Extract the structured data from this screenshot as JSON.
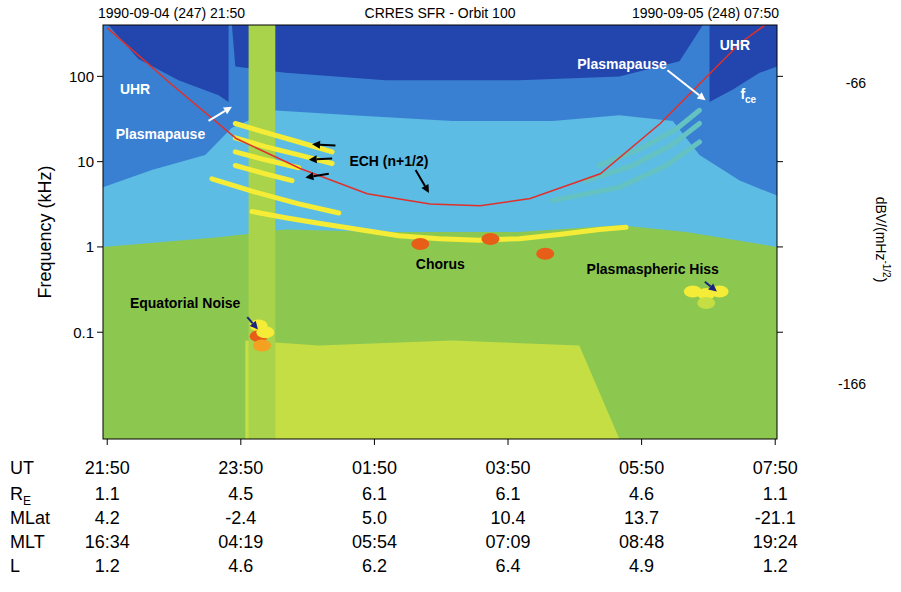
{
  "chart_data": {
    "type": "spectrogram",
    "title": "CRRES SFR - Orbit 100",
    "start_label": "1990-09-04 (247) 21:50",
    "end_label": "1990-09-05 (248) 07:50",
    "ylabel": "Frequency (kHz)",
    "xlabel": "UT",
    "log": "y",
    "grid": false,
    "xlim": [
      21.77,
      31.86
    ],
    "ylim": [
      0.0056,
      400
    ],
    "xticks": [
      {
        "value": 21.8333,
        "label": "21:50"
      },
      {
        "value": 23.8333,
        "label": "23:50"
      },
      {
        "value": 25.8333,
        "label": "01:50"
      },
      {
        "value": 27.8333,
        "label": "03:50"
      },
      {
        "value": 29.8333,
        "label": "05:50"
      },
      {
        "value": 31.8333,
        "label": "07:50"
      }
    ],
    "yticks": [
      0.1,
      1,
      10,
      100
    ],
    "colorbar": {
      "label": "dBV/(mHz",
      "label_superscript": "-1/2",
      "label_suffix": ")",
      "range": [
        -166,
        -66
      ],
      "ticks": [
        -166,
        -66
      ],
      "stops": [
        [
          -166,
          "#1a2a80"
        ],
        [
          -151,
          "#2246ae"
        ],
        [
          -136,
          "#3a80d2"
        ],
        [
          -121,
          "#5cbce4"
        ],
        [
          -111,
          "#6cc8a0"
        ],
        [
          -106,
          "#8cc850"
        ],
        [
          -96,
          "#c4de44"
        ],
        [
          -86,
          "#f4ec36"
        ],
        [
          -76,
          "#f4a020"
        ],
        [
          -66,
          "#d81c10"
        ]
      ]
    },
    "regions": [
      {
        "level": -106,
        "x": [
          21.77,
          31.86,
          31.86,
          21.77
        ],
        "y": [
          0.0056,
          0.0056,
          400,
          400
        ]
      },
      {
        "level": -121,
        "x": [
          21.77,
          21.77,
          23.5,
          24.5,
          26,
          28,
          29.5,
          30.5,
          31.86,
          31.86
        ],
        "y": [
          400,
          1.0,
          1.3,
          1.6,
          1.5,
          1.5,
          1.8,
          1.5,
          1.0,
          400
        ]
      },
      {
        "level": -136,
        "x": [
          21.77,
          21.77,
          22.5,
          23.3,
          23.7,
          24.3,
          25.5,
          27,
          28.5,
          29.5,
          30.3,
          30.7,
          31.3,
          31.86,
          31.86
        ],
        "y": [
          400,
          5,
          8,
          12,
          25,
          40,
          35,
          30,
          30,
          35,
          30,
          12,
          6,
          4,
          400
        ]
      },
      {
        "level": -151,
        "x": [
          21.85,
          22.3,
          22.9,
          23.5,
          23.65,
          23.65
        ],
        "y": [
          400,
          160,
          90,
          60,
          50,
          400
        ]
      },
      {
        "level": -151,
        "x": [
          23.7,
          23.75,
          24.5,
          26,
          28,
          29.5,
          30.4,
          30.75
        ],
        "y": [
          400,
          130,
          110,
          90,
          90,
          100,
          150,
          400
        ]
      },
      {
        "level": -151,
        "x": [
          30.85,
          30.85,
          31.2,
          31.6,
          31.86,
          31.86
        ],
        "y": [
          400,
          50,
          70,
          110,
          130,
          400
        ]
      },
      {
        "level": -96,
        "x": [
          23.9,
          23.9,
          25,
          27,
          28.9,
          29.5
        ],
        "y": [
          0.0056,
          0.08,
          0.07,
          0.08,
          0.07,
          0.0056
        ]
      },
      {
        "level": -101,
        "x": [
          23.95,
          23.95,
          24.35,
          24.35
        ],
        "y": [
          0.0056,
          400,
          400,
          0.0056
        ]
      }
    ],
    "bands": [
      {
        "level": -86,
        "x": [
          23.75,
          24.2,
          24.7,
          25.2
        ],
        "y": [
          28,
          22,
          17,
          13
        ]
      },
      {
        "level": -86,
        "x": [
          23.75,
          24.2,
          24.7,
          25.2
        ],
        "y": [
          19,
          15,
          12,
          9.5
        ]
      },
      {
        "level": -86,
        "x": [
          23.75,
          24.2,
          24.7
        ],
        "y": [
          13,
          10.5,
          8.5
        ]
      },
      {
        "level": -86,
        "x": [
          23.75,
          24.2,
          24.6
        ],
        "y": [
          9,
          7.2,
          6
        ]
      },
      {
        "level": -86,
        "x": [
          23.4,
          24,
          24.7,
          25.3
        ],
        "y": [
          6.3,
          4.5,
          3.2,
          2.5
        ]
      },
      {
        "level": -86,
        "x": [
          24.0,
          24.5,
          25.0,
          25.6,
          26.2,
          26.8,
          27.4,
          28.0,
          28.6,
          29.2,
          29.6
        ],
        "y": [
          2.6,
          2.2,
          1.9,
          1.6,
          1.35,
          1.25,
          1.2,
          1.25,
          1.4,
          1.6,
          1.7
        ]
      },
      {
        "level": -116,
        "x": [
          28.5,
          29.5,
          30.2,
          30.7
        ],
        "y": [
          3.5,
          5,
          9,
          17
        ]
      },
      {
        "level": -116,
        "x": [
          29.0,
          29.7,
          30.3,
          30.7
        ],
        "y": [
          6,
          9,
          16,
          28
        ]
      },
      {
        "level": -116,
        "x": [
          29.2,
          29.8,
          30.35,
          30.7
        ],
        "y": [
          9,
          14,
          24,
          40
        ]
      }
    ],
    "spots": {
      "x": [
        26.52,
        27.57,
        28.39,
        24.1,
        24.1,
        24.15,
        24.2,
        30.6,
        30.8,
        31.0,
        30.8
      ],
      "y": [
        1.08,
        1.24,
        0.83,
        0.12,
        0.09,
        0.07,
        0.1,
        0.3,
        0.28,
        0.3,
        0.22
      ],
      "levels": [
        -71,
        -71,
        -71,
        -86,
        -71,
        -76,
        -86,
        -86,
        -86,
        -86,
        -96
      ]
    },
    "series": [
      {
        "color": "#e0302a",
        "x": [
          21.833,
          22.776,
          23.764,
          24.722,
          25.725,
          26.669,
          27.417,
          28.166,
          29.214,
          30.112,
          30.71,
          31.31,
          31.68
        ],
        "values": [
          370,
          83,
          18.7,
          8.3,
          4.2,
          3.2,
          3.04,
          3.7,
          7.2,
          28,
          83,
          246,
          400
        ]
      }
    ],
    "annotations": [
      {
        "text": "UHR",
        "x": 22.25,
        "y": 72,
        "color": "#ffffff"
      },
      {
        "text": "UHR",
        "x": 31.23,
        "y": 233,
        "color": "#ffffff"
      },
      {
        "text": "Plasmapause",
        "x": 22.63,
        "y": 21,
        "color": "#ffffff"
      },
      {
        "text": "Plasmapause",
        "x": 29.54,
        "y": 138,
        "color": "#ffffff"
      },
      {
        "text": "ECH (n+1/2)",
        "x": 26.05,
        "y": 10.3,
        "color": "#000000"
      },
      {
        "text": "Chorus",
        "x": 26.82,
        "y": 0.63,
        "color": "#000000"
      },
      {
        "text": "Equatorial Noise",
        "x": 23.0,
        "y": 0.22,
        "color": "#000000"
      },
      {
        "text": "Plasmaspheric Hiss",
        "x": 30.0,
        "y": 0.55,
        "color": "#000000"
      },
      {
        "text": "f",
        "subscript": "ce",
        "x": 31.43,
        "y": 62,
        "color": "#ffffff"
      }
    ],
    "arrows": [
      {
        "x": [
          23.35,
          23.7
        ],
        "y": [
          30,
          44
        ],
        "color": "#ffffff"
      },
      {
        "x": [
          30.22,
          30.79
        ],
        "y": [
          118,
          52.5
        ],
        "color": "#ffffff"
      },
      {
        "x": [
          25.25,
          24.9
        ],
        "y": [
          15.5,
          16
        ],
        "color": "#000000"
      },
      {
        "x": [
          25.2,
          24.85
        ],
        "y": [
          10.9,
          10.5
        ],
        "color": "#000000"
      },
      {
        "x": [
          25.15,
          24.8
        ],
        "y": [
          7.2,
          6.5
        ],
        "color": "#000000"
      },
      {
        "x": [
          26.45,
          26.65
        ],
        "y": [
          8.0,
          4.3
        ],
        "color": "#000000"
      },
      {
        "x": [
          23.93,
          24.09
        ],
        "y": [
          0.15,
          0.108
        ],
        "color": "#1a237e"
      },
      {
        "x": [
          30.78,
          30.96
        ],
        "y": [
          0.39,
          0.3
        ],
        "color": "#1a237e"
      }
    ],
    "table": {
      "rows": [
        {
          "label": "R",
          "subscript": "E",
          "values": [
            "1.1",
            "4.5",
            "6.1",
            "6.1",
            "4.6",
            "1.1"
          ]
        },
        {
          "label": "MLat",
          "values": [
            "4.2",
            "-2.4",
            "5.0",
            "10.4",
            "13.7",
            "-21.1"
          ]
        },
        {
          "label": "MLT",
          "values": [
            "16:34",
            "04:19",
            "05:54",
            "07:09",
            "08:48",
            "19:24"
          ]
        },
        {
          "label": "L",
          "values": [
            "1.2",
            "4.6",
            "6.2",
            "6.4",
            "4.9",
            "1.2"
          ]
        }
      ]
    }
  }
}
